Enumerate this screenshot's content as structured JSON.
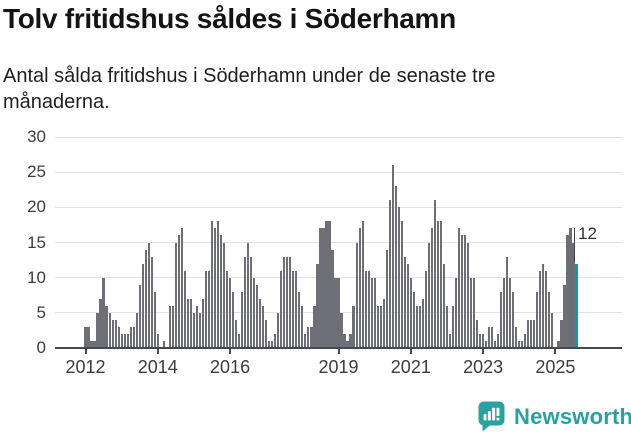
{
  "header": {
    "title": "Tolv fritidshus såldes i Söderhamn",
    "subtitle": "Antal sålda fritidshus i Söderhamn under de senaste tre månaderna.",
    "subtitle_lines": [
      "Antal sålda fritidshus i Söderhamn under de senaste tre",
      "månaderna."
    ]
  },
  "chart_data": {
    "type": "bar",
    "title": "Tolv fritidshus såldes i Söderhamn",
    "subtitle": "Antal sålda fritidshus i Söderhamn under de senaste tre månaderna.",
    "x_start": "2012-01",
    "x_interval": "month",
    "values": [
      3,
      3,
      1,
      1,
      5,
      7,
      10,
      6,
      5,
      4,
      4,
      3,
      2,
      2,
      2,
      3,
      3,
      5,
      9,
      12,
      14,
      15,
      13,
      8,
      2,
      0,
      1,
      0,
      6,
      6,
      15,
      16,
      17,
      11,
      7,
      7,
      5,
      6,
      5,
      7,
      11,
      11,
      18,
      17,
      18,
      16,
      15,
      11,
      10,
      8,
      4,
      2,
      8,
      13,
      15,
      13,
      10,
      9,
      7,
      6,
      4,
      1,
      1,
      2,
      5,
      11,
      13,
      13,
      13,
      11,
      11,
      8,
      6,
      2,
      3,
      3,
      6,
      12,
      17,
      17,
      18,
      18,
      14,
      10,
      10,
      5,
      2,
      1,
      2,
      6,
      15,
      17,
      18,
      11,
      11,
      10,
      10,
      6,
      6,
      7,
      14,
      21,
      26,
      23,
      20,
      18,
      13,
      12,
      10,
      8,
      6,
      6,
      7,
      11,
      15,
      17,
      21,
      18,
      18,
      12,
      6,
      2,
      6,
      10,
      17,
      16,
      16,
      15,
      10,
      10,
      4,
      2,
      2,
      1,
      3,
      3,
      1,
      2,
      8,
      10,
      13,
      10,
      8,
      3,
      1,
      1,
      2,
      4,
      4,
      4,
      8,
      11,
      12,
      11,
      8,
      5,
      0,
      1,
      4,
      9,
      16,
      17,
      15,
      12
    ],
    "highlight": {
      "index": 163,
      "value": 12,
      "label": "12",
      "color": "#0f9b9b"
    },
    "bar_color": "#6e6e76",
    "ylim": [
      0,
      30
    ],
    "yticks": [
      0,
      5,
      10,
      15,
      20,
      25,
      30
    ],
    "xticks": [
      {
        "label": "2012",
        "month": 0
      },
      {
        "label": "2014",
        "month": 24
      },
      {
        "label": "2016",
        "month": 48
      },
      {
        "label": "2019",
        "month": 84
      },
      {
        "label": "2021",
        "month": 108
      },
      {
        "label": "2023",
        "month": 132
      },
      {
        "label": "2025",
        "month": 156
      }
    ],
    "grid": true,
    "legend": "none"
  },
  "colors": {
    "bar_gray": "#6e6e76",
    "highlight_teal": "#0f9b9b",
    "axis": "#47474f",
    "gridline": "#e3e3e5",
    "brand_teal": "#2aa0a0"
  },
  "footer": {
    "brand": "Newsworthy"
  }
}
